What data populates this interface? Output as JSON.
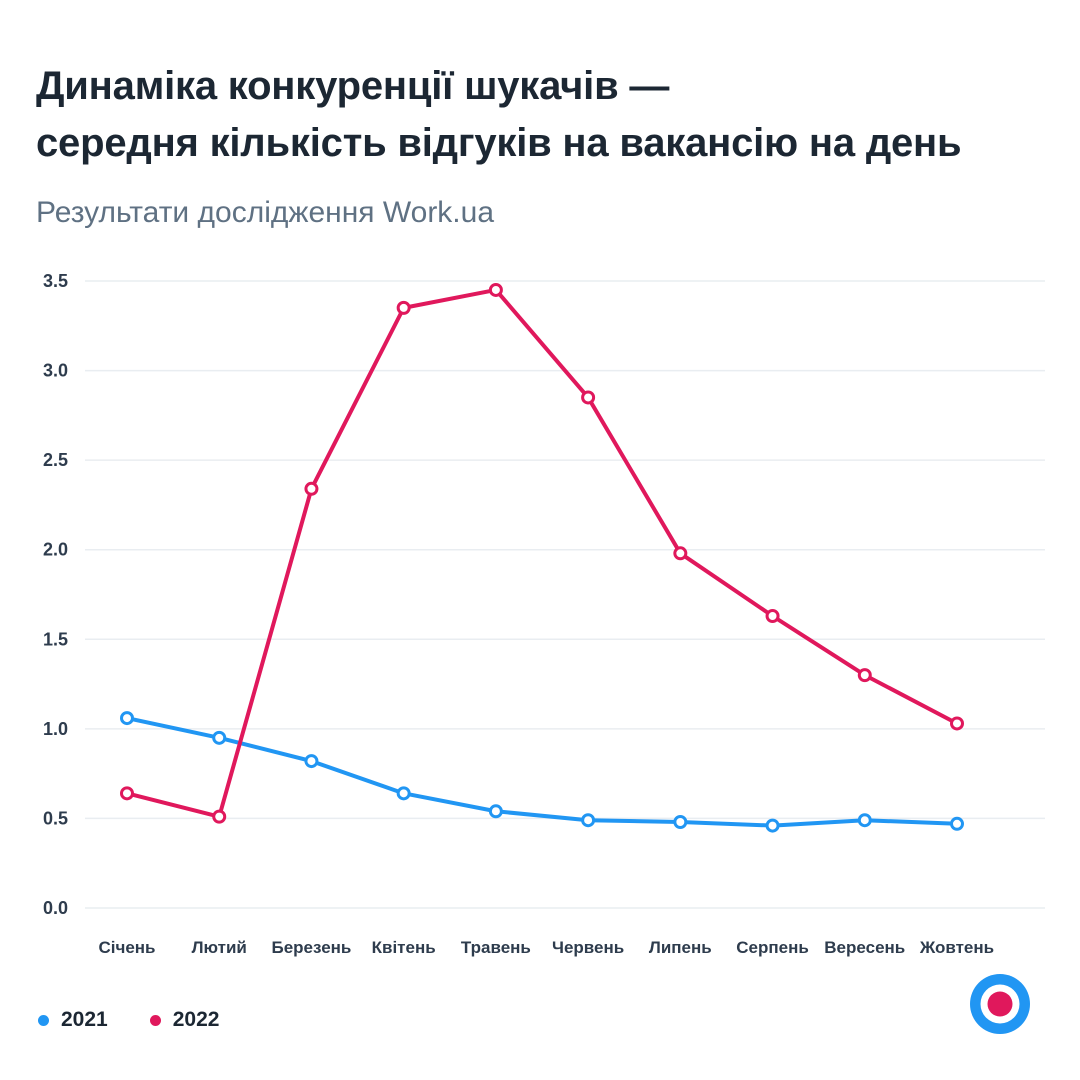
{
  "header": {
    "title_line1": "Динаміка конкуренції шукачів —",
    "title_line2": "середня кількість відгуків на вакансію на день",
    "subtitle": "Результати дослідження Work.ua"
  },
  "colors": {
    "blue": "#2196f3",
    "pink": "#e0185c",
    "grid": "#e9edf1",
    "axis_text": "#2e3c4d",
    "title_text": "#1c2733",
    "subtitle_text": "#5f7183",
    "marker_fill": "#ffffff"
  },
  "chart_data": {
    "type": "line",
    "categories": [
      "Січень",
      "Лютий",
      "Березень",
      "Квітень",
      "Травень",
      "Червень",
      "Липень",
      "Серпень",
      "Вересень",
      "Жовтень"
    ],
    "series": [
      {
        "name": "2021",
        "color": "#2196f3",
        "values": [
          1.06,
          0.95,
          0.82,
          0.64,
          0.54,
          0.49,
          0.48,
          0.46,
          0.49,
          0.47
        ]
      },
      {
        "name": "2022",
        "color": "#e0185c",
        "values": [
          0.64,
          0.51,
          2.34,
          3.35,
          3.45,
          2.85,
          1.98,
          1.63,
          1.3,
          1.03
        ]
      }
    ],
    "yticks": [
      0.0,
      0.5,
      1.0,
      1.5,
      2.0,
      2.5,
      3.0,
      3.5
    ],
    "ylim": [
      0,
      3.7
    ],
    "grid": true,
    "legend_position": "bottom-left",
    "title": "Динаміка конкуренції шукачів — середня кількість відгуків на вакансію на день",
    "xlabel": "",
    "ylabel": ""
  },
  "logo": {
    "name": "Work.ua bullseye logo"
  }
}
